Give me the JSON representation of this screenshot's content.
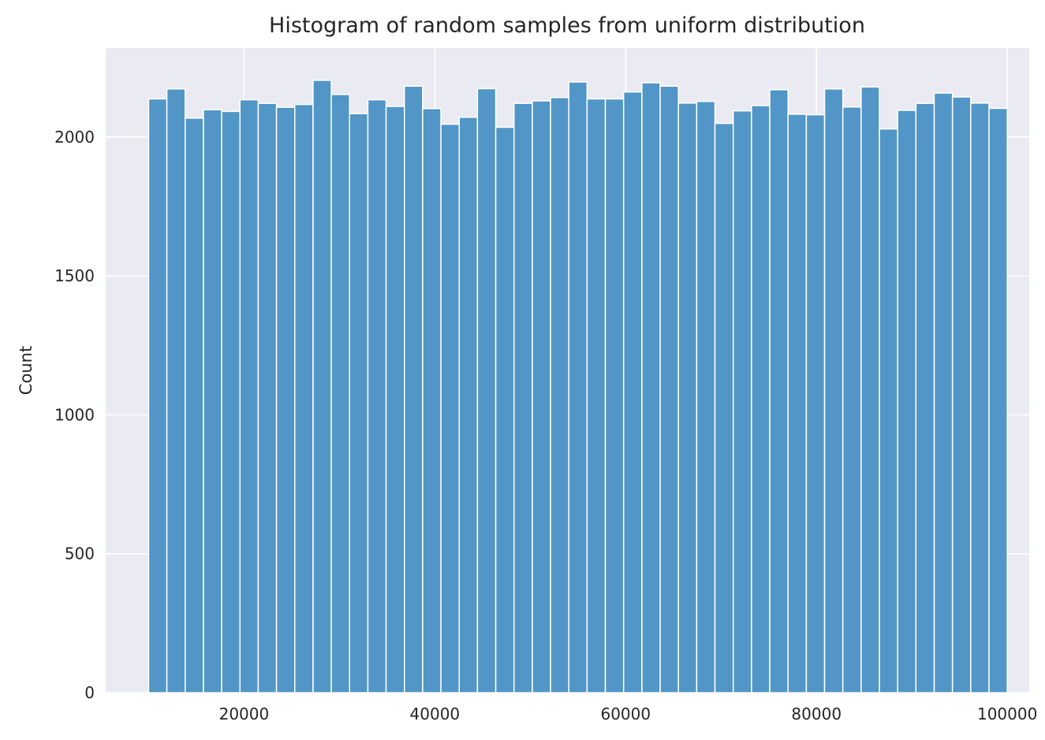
{
  "chart_data": {
    "type": "bar",
    "title": "Histogram of random samples from uniform distribution",
    "xlabel": "",
    "ylabel": "Count",
    "xlim": [
      5500,
      102300
    ],
    "ylim": [
      0,
      2320
    ],
    "grid": true,
    "x_ticks": [
      20000,
      40000,
      60000,
      80000,
      100000
    ],
    "y_ticks": [
      0,
      500,
      1000,
      1500,
      2000
    ],
    "bin_start": 10000,
    "bin_end": 100000,
    "bin_count": 47,
    "values": [
      2137,
      2173,
      2068,
      2098,
      2092,
      2134,
      2121,
      2107,
      2117,
      2204,
      2153,
      2084,
      2134,
      2110,
      2183,
      2102,
      2046,
      2071,
      2174,
      2035,
      2121,
      2130,
      2142,
      2198,
      2137,
      2137,
      2162,
      2195,
      2183,
      2122,
      2128,
      2049,
      2094,
      2113,
      2170,
      2082,
      2080,
      2173,
      2108,
      2180,
      2029,
      2096,
      2121,
      2158,
      2144,
      2122,
      2103
    ],
    "colors": {
      "bar": "#5196c6",
      "bar_edge": "#ffffff",
      "plot_background": "#eaeaf2",
      "grid": "#ffffff",
      "text": "#262626"
    }
  }
}
